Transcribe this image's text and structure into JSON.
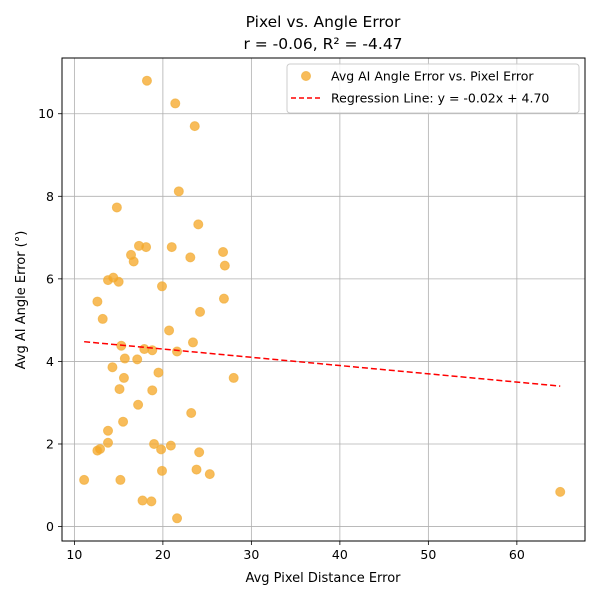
{
  "chart_data": {
    "type": "scatter",
    "title": "Pixel vs. Angle Error",
    "subtitle": "r = -0.06, R² = -4.47",
    "xlabel": "Avg Pixel Distance Error",
    "ylabel": "Avg AI Angle Error (°)",
    "xlim": [
      8.6,
      67.7
    ],
    "ylim": [
      -0.35,
      11.35
    ],
    "xticks": [
      10,
      20,
      30,
      40,
      50,
      60
    ],
    "yticks": [
      0,
      2,
      4,
      6,
      8,
      10
    ],
    "grid": true,
    "legend_position": "top-right",
    "colors": {
      "points": "#f5a623",
      "points_edge": "#f0b040",
      "regression": "#ff0000"
    },
    "series": [
      {
        "name": "Avg AI Angle Error vs. Pixel Error",
        "kind": "scatter",
        "points": [
          [
            18.2,
            10.8
          ],
          [
            21.4,
            10.25
          ],
          [
            23.6,
            9.7
          ],
          [
            21.8,
            8.12
          ],
          [
            14.8,
            7.73
          ],
          [
            24.0,
            7.32
          ],
          [
            17.3,
            6.8
          ],
          [
            18.1,
            6.77
          ],
          [
            21.0,
            6.77
          ],
          [
            26.8,
            6.65
          ],
          [
            16.4,
            6.58
          ],
          [
            23.1,
            6.52
          ],
          [
            16.7,
            6.42
          ],
          [
            27.0,
            6.32
          ],
          [
            14.4,
            6.03
          ],
          [
            13.8,
            5.97
          ],
          [
            15.0,
            5.93
          ],
          [
            19.9,
            5.82
          ],
          [
            26.9,
            5.52
          ],
          [
            12.6,
            5.45
          ],
          [
            24.2,
            5.2
          ],
          [
            13.2,
            5.03
          ],
          [
            20.7,
            4.75
          ],
          [
            23.4,
            4.46
          ],
          [
            15.3,
            4.38
          ],
          [
            17.9,
            4.3
          ],
          [
            18.8,
            4.27
          ],
          [
            21.6,
            4.24
          ],
          [
            15.7,
            4.07
          ],
          [
            17.1,
            4.05
          ],
          [
            14.3,
            3.86
          ],
          [
            19.5,
            3.73
          ],
          [
            15.6,
            3.6
          ],
          [
            28.0,
            3.6
          ],
          [
            15.1,
            3.33
          ],
          [
            18.8,
            3.3
          ],
          [
            17.2,
            2.95
          ],
          [
            23.2,
            2.75
          ],
          [
            15.5,
            2.54
          ],
          [
            13.8,
            2.32
          ],
          [
            13.8,
            2.03
          ],
          [
            19.0,
            2.0
          ],
          [
            20.9,
            1.96
          ],
          [
            12.9,
            1.88
          ],
          [
            12.6,
            1.84
          ],
          [
            19.8,
            1.87
          ],
          [
            24.1,
            1.8
          ],
          [
            23.8,
            1.38
          ],
          [
            19.9,
            1.35
          ],
          [
            25.3,
            1.27
          ],
          [
            11.1,
            1.13
          ],
          [
            15.2,
            1.13
          ],
          [
            64.9,
            0.84
          ],
          [
            17.7,
            0.63
          ],
          [
            18.7,
            0.61
          ],
          [
            21.6,
            0.2
          ]
        ]
      },
      {
        "name": "Regression Line: y = -0.02x + 4.70",
        "kind": "line",
        "slope": -0.02,
        "intercept": 4.7,
        "x_range": [
          11.1,
          64.9
        ]
      }
    ]
  }
}
